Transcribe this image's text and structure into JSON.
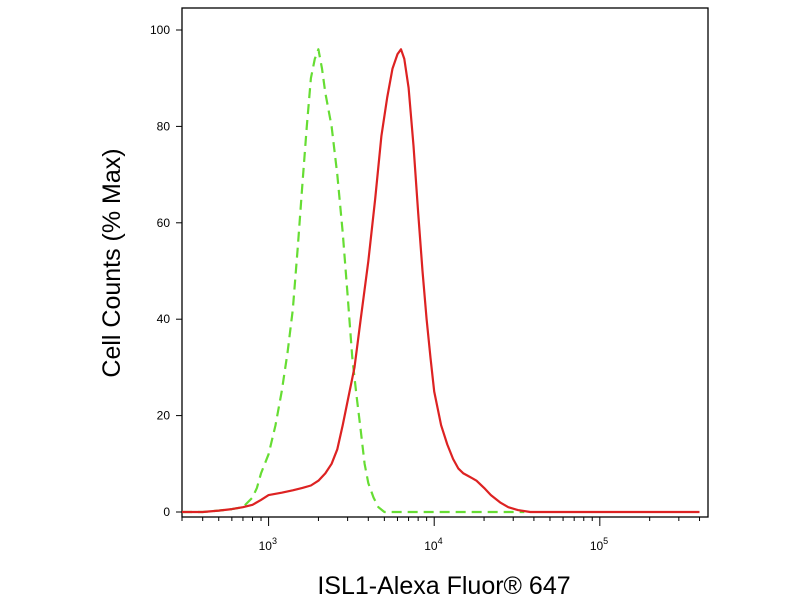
{
  "chart_data": {
    "type": "line",
    "title": "",
    "xlabel": "ISL1-Alexa Fluor® 647",
    "ylabel": "Cell Counts (% Max)",
    "x_scale": "log",
    "xlim": [
      300,
      450000
    ],
    "ylim": [
      0,
      100
    ],
    "grid": false,
    "legend": "none",
    "y_ticks": [
      0,
      20,
      40,
      60,
      80,
      100
    ],
    "y_tick_labels": [
      "0",
      "20",
      "40",
      "60",
      "80",
      "100"
    ],
    "x_major_ticks": [
      1000,
      10000,
      100000
    ],
    "x_tick_labels": [
      {
        "base": "10",
        "exp": "3"
      },
      {
        "base": "10",
        "exp": "4"
      },
      {
        "base": "10",
        "exp": "5"
      }
    ],
    "series": [
      {
        "color": "#66dd33",
        "line_style": "dashed",
        "points": [
          [
            300,
            0
          ],
          [
            400,
            0
          ],
          [
            500,
            0.3
          ],
          [
            600,
            0.6
          ],
          [
            700,
            1
          ],
          [
            800,
            3
          ],
          [
            850,
            5
          ],
          [
            900,
            8
          ],
          [
            1000,
            12
          ],
          [
            1100,
            18
          ],
          [
            1200,
            25
          ],
          [
            1300,
            33
          ],
          [
            1400,
            42
          ],
          [
            1500,
            55
          ],
          [
            1600,
            68
          ],
          [
            1700,
            80
          ],
          [
            1800,
            90
          ],
          [
            1900,
            94
          ],
          [
            2000,
            96
          ],
          [
            2100,
            92
          ],
          [
            2200,
            87
          ],
          [
            2400,
            80
          ],
          [
            2600,
            70
          ],
          [
            2800,
            58
          ],
          [
            3000,
            45
          ],
          [
            3200,
            32
          ],
          [
            3400,
            24
          ],
          [
            3600,
            17
          ],
          [
            3800,
            10
          ],
          [
            4000,
            6
          ],
          [
            4300,
            3
          ],
          [
            4600,
            1
          ],
          [
            5000,
            0
          ],
          [
            10000,
            0
          ],
          [
            20000,
            0
          ],
          [
            35000,
            0
          ]
        ]
      },
      {
        "color": "#dd2222",
        "line_style": "solid",
        "points": [
          [
            300,
            0
          ],
          [
            400,
            0
          ],
          [
            500,
            0.3
          ],
          [
            600,
            0.6
          ],
          [
            700,
            1
          ],
          [
            800,
            1.5
          ],
          [
            900,
            2.5
          ],
          [
            1000,
            3.5
          ],
          [
            1200,
            4
          ],
          [
            1400,
            4.5
          ],
          [
            1600,
            5
          ],
          [
            1800,
            5.5
          ],
          [
            2000,
            6.5
          ],
          [
            2200,
            8
          ],
          [
            2400,
            10
          ],
          [
            2600,
            13
          ],
          [
            2800,
            18
          ],
          [
            3000,
            23
          ],
          [
            3300,
            30
          ],
          [
            3600,
            40
          ],
          [
            4000,
            52
          ],
          [
            4400,
            65
          ],
          [
            4800,
            78
          ],
          [
            5200,
            86
          ],
          [
            5600,
            92
          ],
          [
            6000,
            95
          ],
          [
            6300,
            96
          ],
          [
            6600,
            94
          ],
          [
            7000,
            88
          ],
          [
            7500,
            76
          ],
          [
            8000,
            62
          ],
          [
            8500,
            50
          ],
          [
            9000,
            40
          ],
          [
            9500,
            32
          ],
          [
            10000,
            25
          ],
          [
            11000,
            18
          ],
          [
            12000,
            14
          ],
          [
            13000,
            11
          ],
          [
            14000,
            9
          ],
          [
            15000,
            8
          ],
          [
            16000,
            7.5
          ],
          [
            17000,
            7
          ],
          [
            18000,
            6.5
          ],
          [
            20000,
            5
          ],
          [
            22000,
            3.5
          ],
          [
            25000,
            2
          ],
          [
            28000,
            1
          ],
          [
            32000,
            0.4
          ],
          [
            38000,
            0
          ],
          [
            100000,
            0
          ],
          [
            200000,
            0
          ],
          [
            300000,
            0
          ],
          [
            400000,
            0
          ]
        ]
      }
    ]
  }
}
